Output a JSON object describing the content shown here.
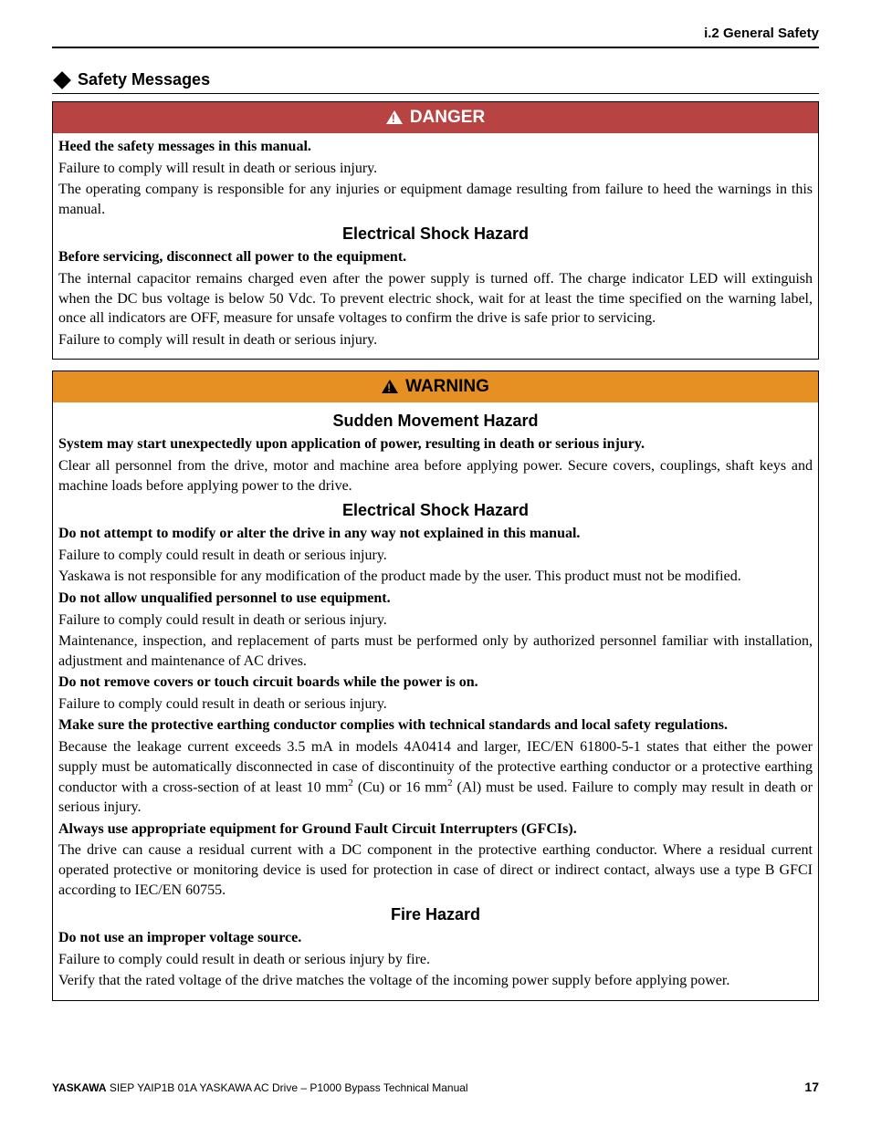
{
  "header": {
    "section_ref": "i.2 General Safety"
  },
  "section": {
    "title": "Safety Messages"
  },
  "danger_box": {
    "banner": "DANGER",
    "banner_bg": "#b74443",
    "banner_fg": "#ffffff",
    "heed_bold": "Heed the safety messages in this manual.",
    "heed_body1": "Failure to comply will result in death or serious injury.",
    "heed_body2": "The operating company is responsible for any injuries or equipment damage resulting from failure to heed the warnings in this manual.",
    "shock_heading": "Electrical Shock Hazard",
    "shock_bold": "Before servicing, disconnect all power to the equipment.",
    "shock_body1": "The internal capacitor remains charged even after the power supply is turned off. The charge indicator LED will extinguish when the DC bus voltage is below 50 Vdc. To prevent electric shock, wait for at least the time specified on the warning label, once all indicators are OFF, measure for unsafe voltages to confirm the drive is safe prior to servicing.",
    "shock_body2": "Failure to comply will result in death or serious injury."
  },
  "warning_box": {
    "banner": "WARNING",
    "banner_bg": "#e69023",
    "banner_fg": "#000000",
    "sudden_heading": "Sudden Movement Hazard",
    "sudden_bold": "System may start unexpectedly upon application of power, resulting in death or serious injury.",
    "sudden_body": "Clear all personnel from the drive, motor and machine area before applying power. Secure covers, couplings, shaft keys and machine loads before applying power to the drive.",
    "shock_heading": "Electrical Shock Hazard",
    "mod_bold": "Do not attempt to modify or alter the drive in any way not explained in this manual.",
    "mod_body1": "Failure to comply could result in death or serious injury.",
    "mod_body2": "Yaskawa is not responsible for any modification of the product made by the user. This product must not be modified.",
    "unq_bold": "Do not allow unqualified personnel to use equipment.",
    "unq_body1": "Failure to comply could result in death or serious injury.",
    "unq_body2": "Maintenance, inspection, and replacement of parts must be performed only by authorized personnel familiar with installation, adjustment and maintenance of AC drives.",
    "cov_bold": "Do not remove covers or touch circuit boards while the power is on.",
    "cov_body": "Failure to comply could result in death or serious injury.",
    "earth_bold": "Make sure the protective earthing conductor complies with technical standards and local safety regulations.",
    "earth_body_pre": "Because the leakage current exceeds 3.5 mA in models 4A0414 and larger, IEC/EN 61800-5-1 states that either the power supply must be automatically disconnected in case of discontinuity of the protective earthing conductor or a protective earthing conductor with a cross-section of at least 10 mm",
    "earth_body_mid": " (Cu) or 16 mm",
    "earth_body_post": " (Al) must be used. Failure to comply may result in death or serious injury.",
    "gfci_bold": "Always use appropriate equipment for Ground Fault Circuit Interrupters (GFCIs).",
    "gfci_body": "The drive can cause a residual current with a DC component in the protective earthing conductor. Where a residual current operated protective or monitoring device is used for protection in case of direct or indirect contact, always use a type B GFCI according to IEC/EN 60755.",
    "fire_heading": "Fire Hazard",
    "fire_bold": "Do not use an improper voltage source.",
    "fire_body1": "Failure to comply could result in death or serious injury by fire.",
    "fire_body2": "Verify that the rated voltage of the drive matches the voltage of the incoming power supply before applying power."
  },
  "footer": {
    "brand": "YASKAWA",
    "doc": " SIEP YAIP1B 01A YASKAWA AC Drive – P1000 Bypass Technical Manual",
    "page": "17"
  }
}
